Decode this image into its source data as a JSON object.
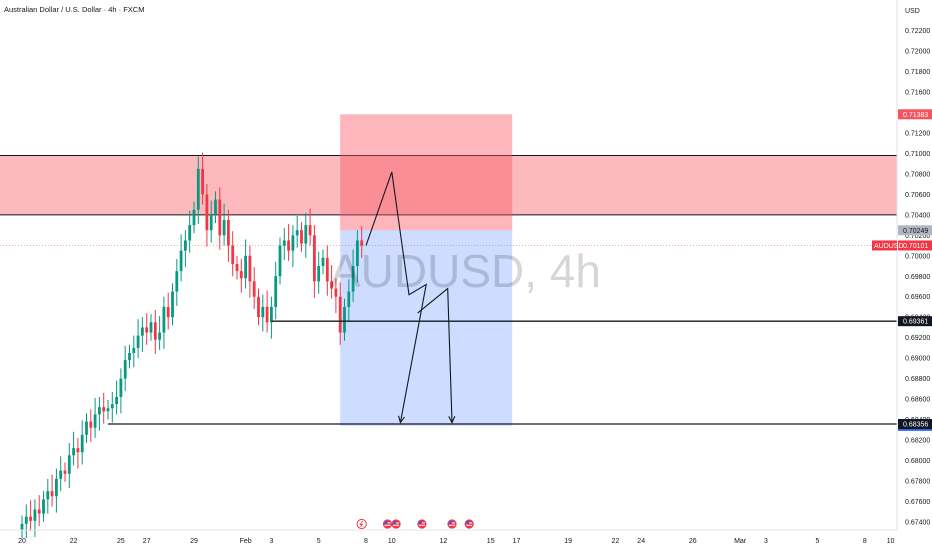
{
  "chart_data": {
    "type": "candlestick",
    "title": "Australian Dollar / U.S. Dollar · 4h · FXCM",
    "watermark": "AUDUSD, 4h",
    "currency": "USD",
    "ylim": [
      0.6732,
      0.725
    ],
    "y_ticks": [
      "0.72200",
      "0.72000",
      "0.71800",
      "0.71600",
      "0.71400",
      "0.71200",
      "0.71000",
      "0.70800",
      "0.70600",
      "0.70400",
      "0.70200",
      "0.70000",
      "0.69800",
      "0.69600",
      "0.69400",
      "0.69200",
      "0.69000",
      "0.68800",
      "0.68600",
      "0.68400",
      "0.68200",
      "0.68000",
      "0.67800",
      "0.67600",
      "0.67400"
    ],
    "x_ticks": [
      {
        "label": "20",
        "i": 0
      },
      {
        "label": "22",
        "i": 12
      },
      {
        "label": "25",
        "i": 23
      },
      {
        "label": "27",
        "i": 29
      },
      {
        "label": "29",
        "i": 40
      },
      {
        "label": "Feb",
        "i": 52
      },
      {
        "label": "3",
        "i": 58
      },
      {
        "label": "5",
        "i": 69
      },
      {
        "label": "8",
        "i": 80
      },
      {
        "label": "10",
        "i": 86
      },
      {
        "label": "12",
        "i": 98
      },
      {
        "label": "15",
        "i": 109
      },
      {
        "label": "17",
        "i": 115
      },
      {
        "label": "19",
        "i": 127
      },
      {
        "label": "22",
        "i": 138
      },
      {
        "label": "24",
        "i": 144
      },
      {
        "label": "26",
        "i": 156
      },
      {
        "label": "Mar",
        "i": 167
      },
      {
        "label": "3",
        "i": 173
      },
      {
        "label": "5",
        "i": 185
      },
      {
        "label": "8",
        "i": 196
      },
      {
        "label": "10",
        "i": 202
      }
    ],
    "candles_close": [
      0.6738,
      0.6745,
      0.6741,
      0.6752,
      0.6748,
      0.6762,
      0.677,
      0.6765,
      0.6782,
      0.679,
      0.6787,
      0.6805,
      0.6812,
      0.6808,
      0.6825,
      0.6838,
      0.6832,
      0.6845,
      0.6852,
      0.6848,
      0.6851,
      0.6855,
      0.6862,
      0.688,
      0.6898,
      0.6905,
      0.691,
      0.6922,
      0.693,
      0.6925,
      0.6935,
      0.6918,
      0.6925,
      0.695,
      0.694,
      0.6965,
      0.6985,
      0.7005,
      0.7015,
      0.703,
      0.7045,
      0.7085,
      0.706,
      0.7025,
      0.704,
      0.7055,
      0.702,
      0.7035,
      0.701,
      0.6992,
      0.6985,
      0.6978,
      0.7,
      0.6975,
      0.696,
      0.694,
      0.695,
      0.6935,
      0.695,
      0.698,
      0.701,
      0.7015,
      0.7005,
      0.702,
      0.7025,
      0.7012,
      0.703,
      0.702,
      0.6975,
      0.699,
      0.6998,
      0.6975,
      0.6968,
      0.696,
      0.6925,
      0.695,
      0.6965,
      0.699,
      0.7015,
      0.701
    ],
    "rect_tags": [
      {
        "value": 0.71383,
        "label": "0.71383",
        "bg": "#f7525f",
        "fg": "#ffffff"
      },
      {
        "value": 0.70249,
        "label": "0.70249",
        "bg": "#b2b5be",
        "fg": "#131722"
      },
      {
        "value": 0.68338,
        "label": "0.68338",
        "bg": "#2962ff",
        "fg": "#ffffff"
      }
    ],
    "current_price": {
      "symbol": "AUDUSD",
      "value": 0.70101,
      "label": "0.70101",
      "color": "#f23645"
    },
    "horizontal_lines": [
      {
        "value": 0.69361,
        "label": "0.69361",
        "from_i": 58
      },
      {
        "value": 0.68356,
        "label": "0.68356",
        "from_i": 20
      }
    ],
    "supply_zone": {
      "top": 0.7098,
      "bottom": 0.704,
      "color": "#f7525f"
    },
    "position": {
      "from_i": 74,
      "to_i": 114,
      "entry": 0.70249,
      "stop": 0.71383,
      "target": 0.68338,
      "risk_color": "#f7525f",
      "reward_color": "#5b8cff"
    },
    "projection_path": [
      {
        "i": 80,
        "v": 0.701
      },
      {
        "i": 86,
        "v": 0.7082
      },
      {
        "i": 90,
        "v": 0.6962
      },
      {
        "i": 94,
        "v": 0.6972
      },
      {
        "i": 88,
        "v": 0.6837
      },
      {
        "i": 92,
        "v": 0.6944
      },
      {
        "i": 99,
        "v": 0.6968
      },
      {
        "i": 100,
        "v": 0.6837
      }
    ],
    "event_icons": [
      {
        "i": 79,
        "name": "earnings"
      },
      {
        "i": 85,
        "name": "au-flag"
      },
      {
        "i": 87,
        "name": "us-flag"
      },
      {
        "i": 93,
        "name": "us-flag"
      },
      {
        "i": 100,
        "name": "us-flag"
      },
      {
        "i": 104,
        "name": "us-flag"
      }
    ]
  }
}
